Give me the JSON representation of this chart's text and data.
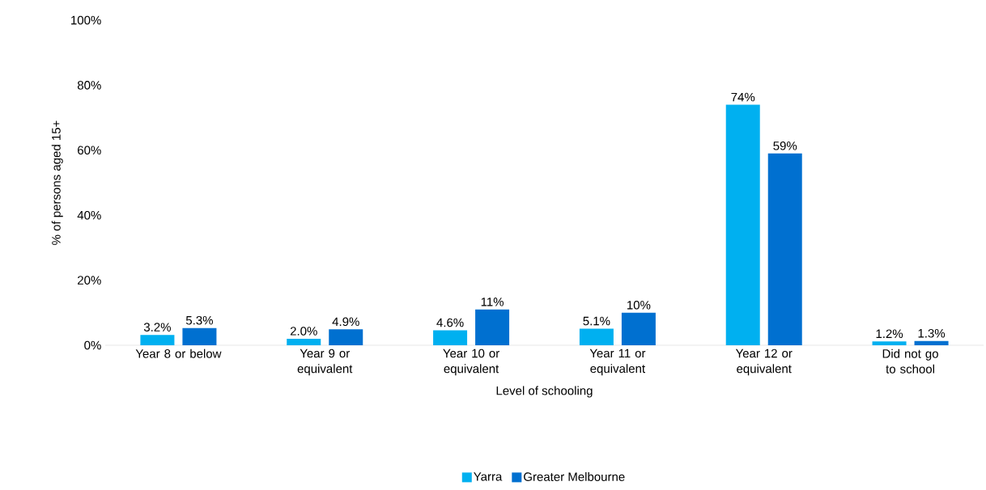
{
  "chart_data": {
    "type": "bar",
    "xlabel": "Level of schooling",
    "ylabel": "% of persons aged 15+",
    "categories": [
      "Year 8 or below",
      "Year 9 or equivalent",
      "Year 10 or equivalent",
      "Year 11 or equivalent",
      "Year 12 or equivalent",
      "Did not go to school"
    ],
    "series": [
      {
        "name": "Yarra",
        "color": "#00b0f0",
        "values": [
          3.2,
          2.0,
          4.6,
          5.1,
          74,
          1.2
        ],
        "value_labels": [
          "3.2%",
          "2.0%",
          "4.6%",
          "5.1%",
          "74%",
          "1.2%"
        ]
      },
      {
        "name": "Greater Melbourne",
        "color": "#0070d0",
        "values": [
          5.3,
          4.9,
          11,
          10,
          59,
          1.3
        ],
        "value_labels": [
          "5.3%",
          "4.9%",
          "11%",
          "10%",
          "59%",
          "1.3%"
        ]
      }
    ],
    "ylim": [
      0,
      100
    ],
    "yticks": [
      {
        "value": 0,
        "label": "0%"
      },
      {
        "value": 20,
        "label": "20%"
      },
      {
        "value": 40,
        "label": "40%"
      },
      {
        "value": 60,
        "label": "60%"
      },
      {
        "value": 80,
        "label": "80%"
      },
      {
        "value": 100,
        "label": "100%"
      }
    ],
    "legend": "bottom"
  }
}
